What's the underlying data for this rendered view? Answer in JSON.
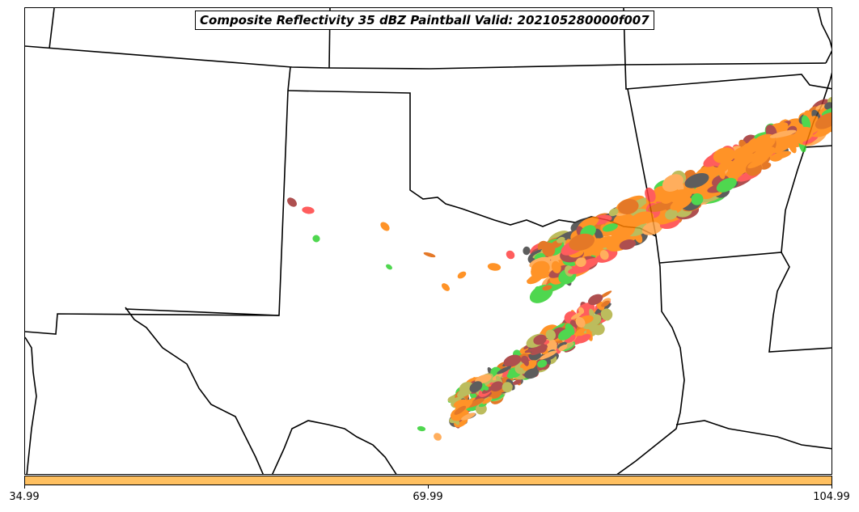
{
  "title": "Composite Reflectivity 35 dBZ Paintball Valid: 202105280000f007",
  "colorbar": {
    "color": "#ffc060",
    "tick_labels": [
      "34.99",
      "69.99",
      "104.99"
    ]
  },
  "colors": {
    "border": "#000000",
    "member_colors": [
      "#ff8000",
      "#ff4040",
      "#a03030",
      "#30d030",
      "#b0b040",
      "#ffa040",
      "#404040",
      "#e06000"
    ]
  }
}
